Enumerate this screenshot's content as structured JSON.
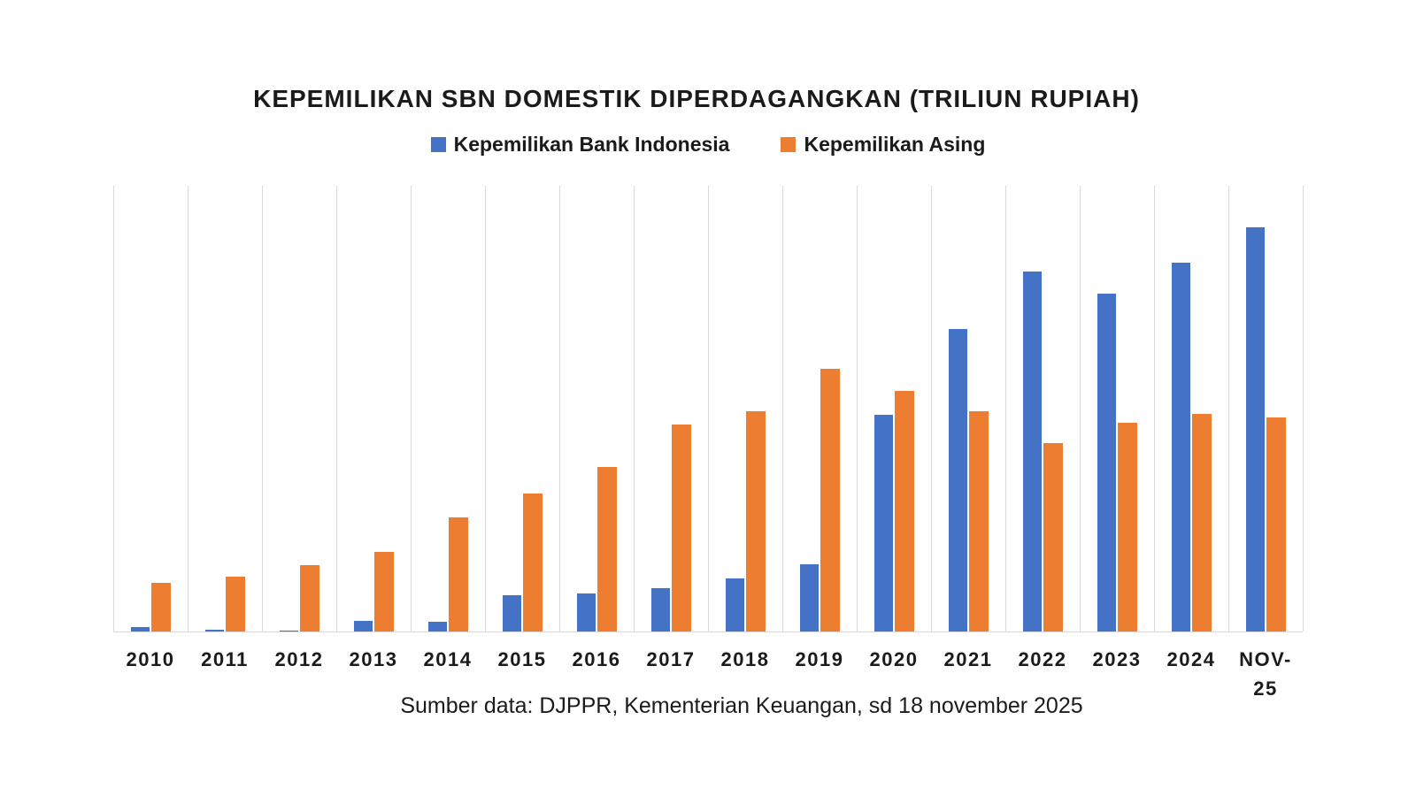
{
  "chart_data": {
    "type": "bar",
    "title": "KEPEMILIKAN SBN DOMESTIK DIPERDAGANGKAN (TRILIUN RUPIAH)",
    "unit": "triliun rupiah",
    "categories": [
      "2010",
      "2011",
      "2012",
      "2013",
      "2014",
      "2015",
      "2016",
      "2017",
      "2018",
      "2019",
      "2020",
      "2021",
      "2022",
      "2023",
      "2024",
      "NOV-25"
    ],
    "series": [
      {
        "name": "Kepemilikan Bank Indonesia",
        "color": "#4472C4",
        "values": [
          17,
          7,
          3,
          43,
          40,
          147,
          154,
          176,
          215,
          272,
          875,
          1220,
          1452,
          1363,
          1488,
          1631
        ]
      },
      {
        "name": "Kepemilikan Asing",
        "color": "#ED7D31",
        "values": [
          196,
          222,
          268,
          320,
          460,
          556,
          664,
          835,
          890,
          1060,
          972,
          890,
          762,
          842,
          878,
          866
        ]
      }
    ],
    "xlabel": "",
    "ylabel": "",
    "ylim": [
      0,
      1800
    ],
    "y_axis_labels_visible": false,
    "grid": "vertical-category-lines",
    "legend_position": "top",
    "source_note": "Sumber data: DJPPR, Kementerian Keuangan, sd 18 november 2025"
  },
  "colors": {
    "gridline": "#D9D9D9",
    "axis_line": "#D9D9D9",
    "text": "#1B1B1B",
    "background": "#FFFFFF"
  }
}
